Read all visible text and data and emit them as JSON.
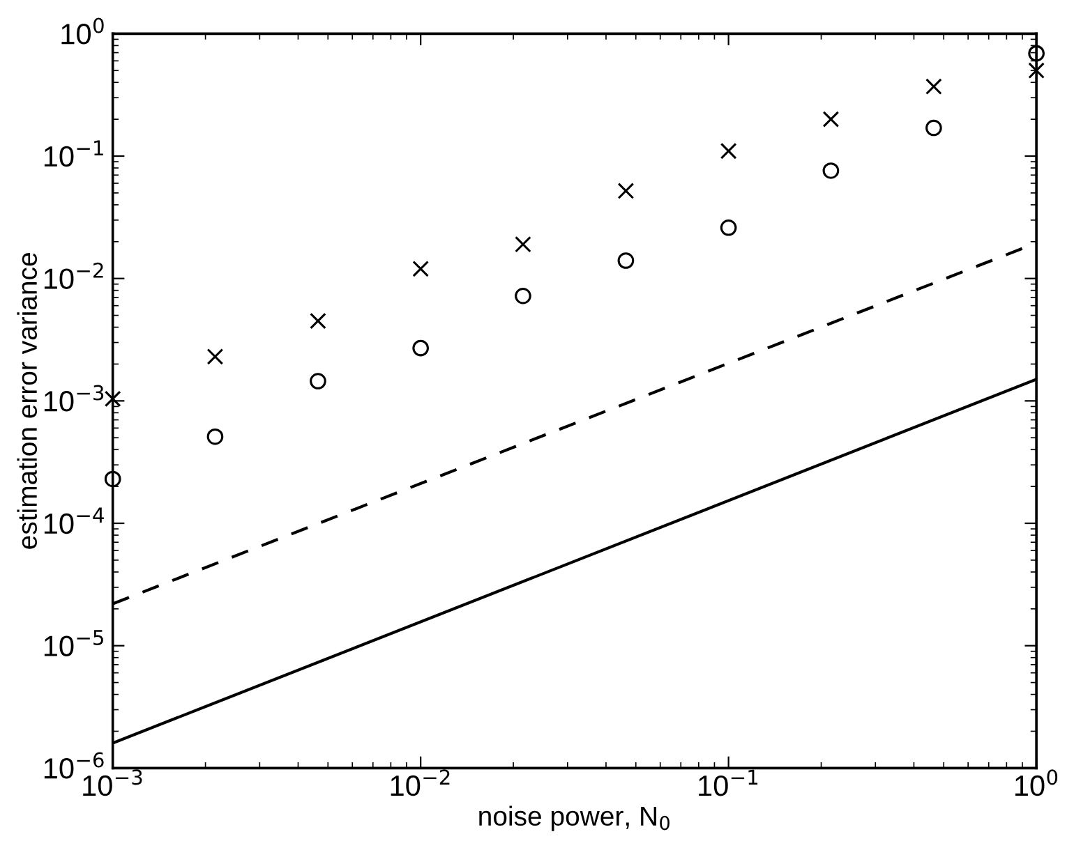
{
  "chart_data": {
    "type": "scatter",
    "xlabel": "noise power, N$_{0}$",
    "ylabel": "estimation error variance",
    "log": "xy",
    "grid": false,
    "legend": false,
    "xlim": [
      0.001,
      1
    ],
    "ylim": [
      1e-06,
      1
    ],
    "xticks": [
      {
        "value": 0.001,
        "label": "10$^{−3}$"
      },
      {
        "value": 0.01,
        "label": "10$^{−2}$"
      },
      {
        "value": 0.1,
        "label": "10$^{−1}$"
      },
      {
        "value": 1,
        "label": "10$^{0}$"
      }
    ],
    "yticks": [
      {
        "value": 1e-06,
        "label": "10$^{−6}$"
      },
      {
        "value": 1e-05,
        "label": "10$^{−5}$"
      },
      {
        "value": 0.0001,
        "label": "10$^{−4}$"
      },
      {
        "value": 0.001,
        "label": "10$^{−3}$"
      },
      {
        "value": 0.01,
        "label": "10$^{−2}$"
      },
      {
        "value": 0.1,
        "label": "10$^{−1}$"
      },
      {
        "value": 1,
        "label": "10$^{0}$"
      }
    ],
    "series": [
      {
        "marker": "cross",
        "color": "#000000",
        "x": [
          0.001,
          0.00215,
          0.00464,
          0.01,
          0.0215,
          0.0464,
          0.1,
          0.215,
          0.464,
          1
        ],
        "values": [
          0.00104,
          0.0023,
          0.0045,
          0.012,
          0.019,
          0.052,
          0.11,
          0.2,
          0.37,
          0.5
        ]
      },
      {
        "marker": "circle",
        "color": "#000000",
        "x": [
          0.001,
          0.00215,
          0.00464,
          0.01,
          0.0215,
          0.0464,
          0.1,
          0.215,
          0.464,
          1
        ],
        "values": [
          0.00023,
          0.00051,
          0.00145,
          0.0027,
          0.0072,
          0.014,
          0.026,
          0.076,
          0.17,
          0.69
        ]
      },
      {
        "type": "line",
        "line_style": "dashed",
        "color": "#000000",
        "x": [
          0.001,
          1
        ],
        "values": [
          2.2e-05,
          0.0195
        ]
      },
      {
        "type": "line",
        "line_style": "solid",
        "color": "#000000",
        "x": [
          0.001,
          1
        ],
        "values": [
          1.6e-06,
          0.0015
        ]
      }
    ]
  }
}
